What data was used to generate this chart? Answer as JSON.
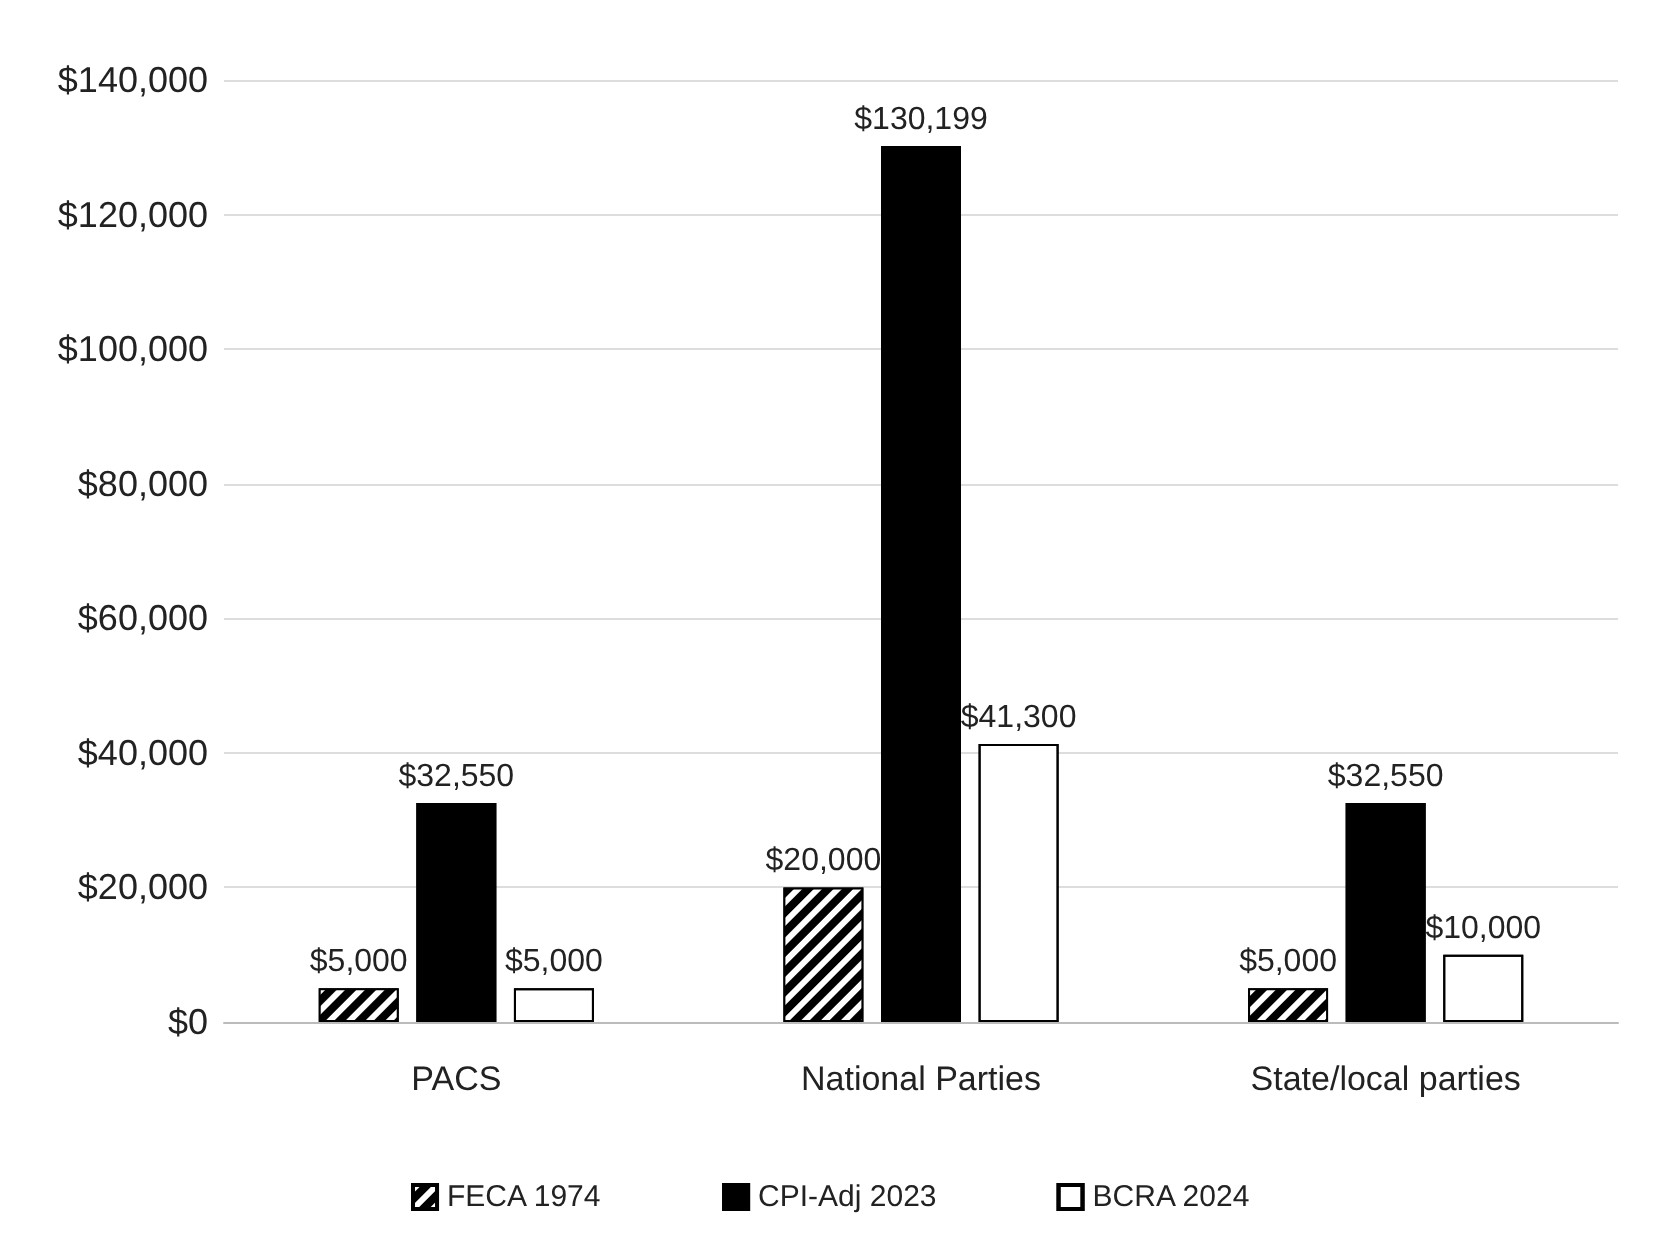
{
  "chart_data": {
    "type": "bar",
    "categories": [
      "PACS",
      "National Parties",
      "State/local parties"
    ],
    "series": [
      {
        "name": "FECA 1974",
        "color": "#000000",
        "values": [
          5000,
          20000,
          5000
        ],
        "value_labels": [
          "$5,000",
          "$20,000",
          "$5,000"
        ]
      },
      {
        "name": "CPI-Adj 2023",
        "color": "#000000",
        "values": [
          32550,
          130199,
          32550
        ],
        "value_labels": [
          "$32,550",
          "$130,199",
          "$32,550"
        ]
      },
      {
        "name": "BCRA 2024",
        "color": "#ffffff",
        "values": [
          5000,
          41300,
          10000
        ],
        "value_labels": [
          "$5,000",
          "$41,300",
          "$10,000"
        ]
      }
    ],
    "ylim": [
      0,
      140000
    ],
    "yticks": [
      {
        "value": 0,
        "label": "$0"
      },
      {
        "value": 20000,
        "label": "$20,000"
      },
      {
        "value": 40000,
        "label": "$40,000"
      },
      {
        "value": 60000,
        "label": "$60,000"
      },
      {
        "value": 80000,
        "label": "$80,000"
      },
      {
        "value": 100000,
        "label": "$100,000"
      },
      {
        "value": 120000,
        "label": "$120,000"
      },
      {
        "value": 140000,
        "label": "$140,000"
      }
    ],
    "grid": "y",
    "legend": "bottom"
  }
}
